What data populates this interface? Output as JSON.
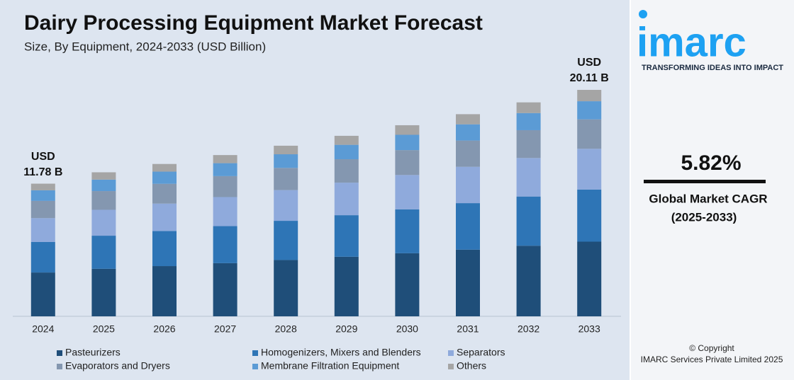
{
  "chart_data": {
    "type": "stacked-bar",
    "title": "Dairy Processing Equipment Market Forecast",
    "subtitle": "Size, By Equipment, 2024-2033 (USD Billion)",
    "categories": [
      "2024",
      "2025",
      "2026",
      "2027",
      "2028",
      "2029",
      "2030",
      "2031",
      "2032",
      "2033"
    ],
    "series": [
      {
        "name": "Pasteurizers",
        "color": "#1f4e79",
        "values": [
          3.89,
          4.22,
          4.46,
          4.72,
          5.0,
          5.29,
          5.6,
          5.92,
          6.27,
          6.63
        ]
      },
      {
        "name": "Homogenizers, Mixers and Blenders",
        "color": "#2e75b6",
        "values": [
          2.71,
          2.94,
          3.11,
          3.29,
          3.48,
          3.69,
          3.9,
          4.13,
          4.37,
          4.63
        ]
      },
      {
        "name": "Separators",
        "color": "#8faadc",
        "values": [
          2.12,
          2.3,
          2.44,
          2.58,
          2.73,
          2.89,
          3.05,
          3.23,
          3.42,
          3.62
        ]
      },
      {
        "name": "Evaporators and Dryers",
        "color": "#8497b0",
        "values": [
          1.53,
          1.66,
          1.76,
          1.86,
          1.97,
          2.08,
          2.21,
          2.33,
          2.47,
          2.61
        ]
      },
      {
        "name": "Membrane Filtration Equipment",
        "color": "#5b9bd5",
        "values": [
          0.94,
          1.02,
          1.08,
          1.15,
          1.21,
          1.28,
          1.36,
          1.44,
          1.52,
          1.61
        ]
      },
      {
        "name": "Others",
        "color": "#a5a5a5",
        "values": [
          0.59,
          0.65,
          0.68,
          0.72,
          0.76,
          0.8,
          0.85,
          0.9,
          0.95,
          1.01
        ]
      }
    ],
    "annotations": [
      [
        "USD",
        "11.78 B"
      ],
      [
        "USD",
        "20.11 B"
      ]
    ]
  },
  "panel": {
    "logo": "imarc",
    "tagline": "TRANSFORMING IDEAS INTO IMPACT",
    "cagr": "5.82%",
    "cagr_label": "Global Market CAGR",
    "cagr_period": "(2025-2033)",
    "copyright": "© Copyright",
    "company": "IMARC Services Private Limited 2025"
  }
}
